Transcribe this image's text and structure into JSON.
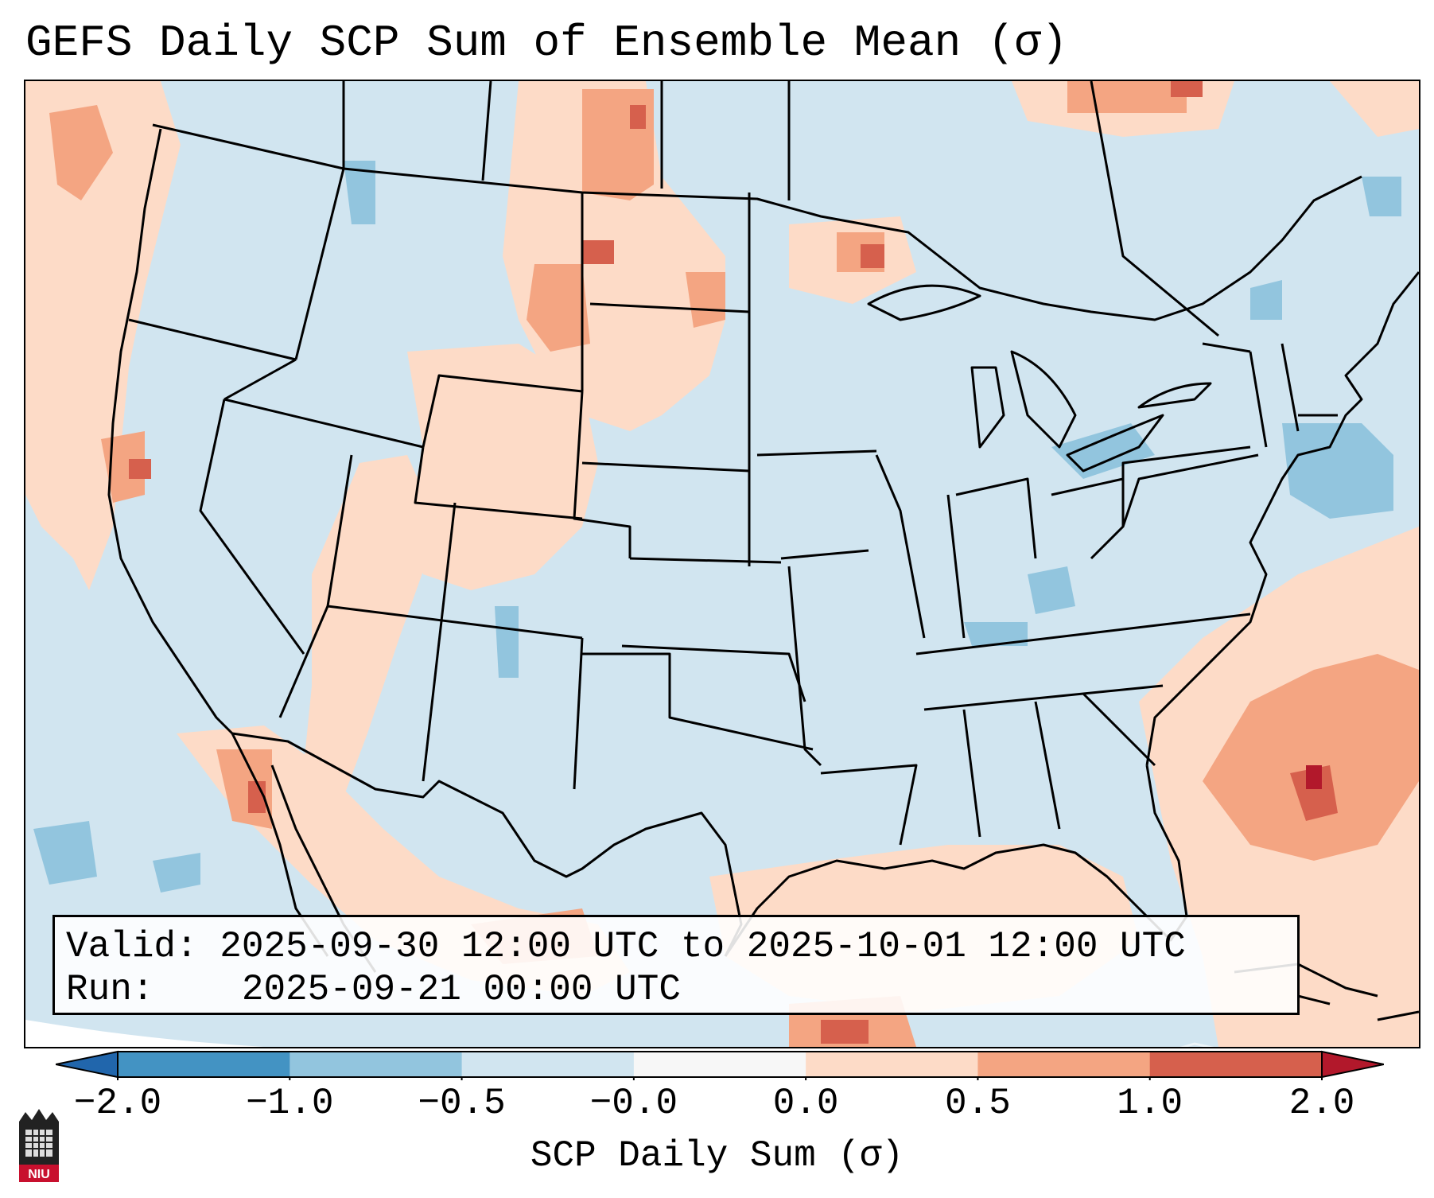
{
  "title": "GEFS Daily SCP Sum of Ensemble Mean (σ)",
  "info": {
    "valid_label": "Valid:",
    "valid_value": "2025-09-30 12:00 UTC to 2025-10-01 12:00 UTC",
    "run_label": "Run:",
    "run_value": "2025-09-21 00:00 UTC"
  },
  "colorbar": {
    "label": "SCP Daily Sum (σ)",
    "bins": [
      {
        "from": -2.0,
        "to": -1.0,
        "color": "#4393c3"
      },
      {
        "from": -1.0,
        "to": -0.5,
        "color": "#92c5de"
      },
      {
        "from": -0.5,
        "to": -0.0,
        "color": "#d1e5f0"
      },
      {
        "from": -0.0,
        "to": 0.0,
        "color": "#f7f7f7"
      },
      {
        "from": 0.0,
        "to": 0.5,
        "color": "#fddbc7"
      },
      {
        "from": 0.5,
        "to": 1.0,
        "color": "#f4a582"
      },
      {
        "from": 1.0,
        "to": 2.0,
        "color": "#d6604d"
      }
    ],
    "under_color": "#2166ac",
    "over_color": "#b2182b",
    "ticks": [
      "−2.0",
      "−1.0",
      "−0.5",
      "−0.0",
      "0.0",
      "0.5",
      "1.0",
      "2.0"
    ]
  },
  "logo": {
    "text": "NIU"
  },
  "colors": {
    "background_field": "#d1e5f0",
    "positive_low": "#fddbc7",
    "positive_mid": "#f4a582",
    "positive_high": "#d6604d",
    "positive_max": "#b2182b",
    "negative_mid": "#92c5de"
  }
}
